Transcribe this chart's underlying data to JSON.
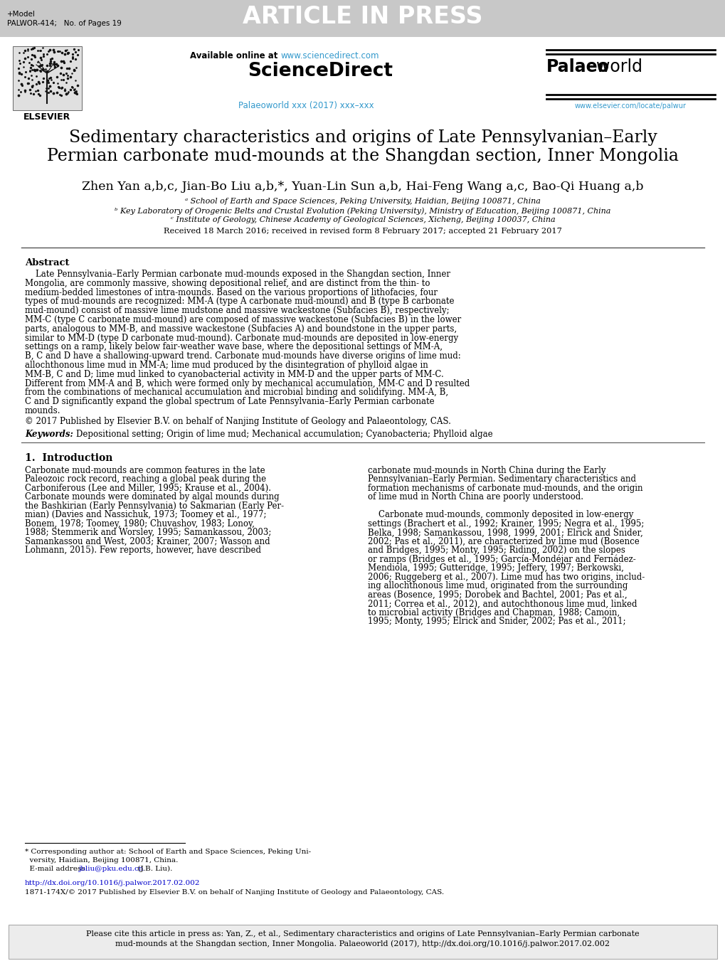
{
  "header_bg": "#c8c8c8",
  "header_text": "ARTICLE IN PRESS",
  "header_left_line1": "+Model",
  "header_left_line2": "PALWOR-414;   No. of Pages 19",
  "url_text": "www.sciencedirect.com",
  "url_color": "#3399cc",
  "journal_issue": "Palaeoworld xxx (2017) xxx–xxx",
  "journal_issue_color": "#3399cc",
  "journal_url": "www.elsevier.com/locate/palwur",
  "journal_url_color": "#3399cc",
  "title_line1": "Sedimentary characteristics and origins of Late Pennsylvanian–Early",
  "title_line2": "Permian carbonate mud-mounds at the Shangdan section, Inner Mongolia",
  "affil_a": "ᵃ School of Earth and Space Sciences, Peking University, Haidian, Beijing 100871, China",
  "affil_b": "ᵇ Key Laboratory of Orogenic Belts and Crustal Evolution (Peking University), Ministry of Education, Beijing 100871, China",
  "affil_c": "ᶜ Institute of Geology, Chinese Academy of Geological Sciences, Xicheng, Beijing 100037, China",
  "received": "Received 18 March 2016; received in revised form 8 February 2017; accepted 21 February 2017",
  "abstract_title": "Abstract",
  "abstract_para": "    Late Pennsylvania–Early Permian carbonate mud-mounds exposed in the Shangdan section, Inner Mongolia, are commonly massive, showing depositional relief, and are distinct from the thin- to medium-bedded limestones of intra-mounds. Based on the various proportions of lithofacies, four types of mud-mounds are recognized: MM-A (type A carbonate mud-mound) and B (type B carbonate mud-mound) consist of massive lime mudstone and massive wackestone (Subfacies B), respectively; MM-C (type C carbonate mud-mound) are composed of massive wackestone (Subfacies B) in the lower parts, analogous to MM-B, and massive wackestone (Subfacies A) and boundstone in the upper parts, similar to MM-D (type D carbonate mud-mound). Carbonate mud-mounds are deposited in low-energy settings on a ramp, likely below fair-weather wave base, where the depositional settings of MM-A, B, C and D have a shallowing-upward trend. Carbonate mud-mounds have diverse origins of lime mud: allochthonous lime mud in MM-A; lime mud produced by the disintegration of phylloid algae in MM-B, C and D; lime mud linked to cyanobacterial activity in MM-D and the upper parts of MM-C. Different from MM-A and B, which were formed only by mechanical accumulation, MM-C and D resulted from the combinations of mechanical accumulation and microbial binding and solidifying. MM-A, B, C and D significantly expand the global spectrum of Late Pennsylvania–Early Permian carbonate mounds.",
  "abstract_copy": "© 2017 Published by Elsevier B.V. on behalf of Nanjing Institute of Geology and Palaeontology, CAS.",
  "keywords_label": "Keywords:  ",
  "keywords_text": "Depositional setting; Origin of lime mud; Mechanical accumulation; Cyanobacteria; Phylloid algae",
  "section1_title": "1.  Introduction",
  "intro_col1_lines": [
    "Carbonate mud-mounds are common features in the late",
    "Paleozoic rock record, reaching a global peak during the",
    "Carboniferous (Lee and Miller, 1995; Krause et al., 2004).",
    "Carbonate mounds were dominated by algal mounds during",
    "the Bashkirian (Early Pennsylvania) to Sakmarian (Early Per-",
    "mian) (Davies and Nassichuk, 1973; Toomey et al., 1977;",
    "Bonem, 1978; Toomey, 1980; Chuvashov, 1983; Lonoy,",
    "1988; Stemmerik and Worsley, 1995; Samankassou, 2003;",
    "Samankassou and West, 2003; Krainer, 2007; Wasson and",
    "Lohmann, 2015). Few reports, however, have described"
  ],
  "intro_col2_lines": [
    "carbonate mud-mounds in North China during the Early",
    "Pennsylvanian–Early Permian. Sedimentary characteristics and",
    "formation mechanisms of carbonate mud-mounds, and the origin",
    "of lime mud in North China are poorly understood.",
    "",
    "    Carbonate mud-mounds, commonly deposited in low-energy",
    "settings (Brachert et al., 1992; Krainer, 1995; Negra et al., 1995;",
    "Belka, 1998; Samankassou, 1998, 1999, 2001; Elrick and Snider,",
    "2002; Pas et al., 2011), are characterized by lime mud (Bosence",
    "and Bridges, 1995; Monty, 1995; Riding, 2002) on the slopes",
    "or ramps (Bridges et al., 1995; García-Mondéjar and Fernádez-",
    "Mendiola, 1995; Gutteridge, 1995; Jeffery, 1997; Berkowski,",
    "2006; Ruggeberg et al., 2007). Lime mud has two origins, includ-",
    "ing allochthonous lime mud, originated from the surrounding",
    "areas (Bosence, 1995; Dorobek and Bachtel, 2001; Pas et al.,",
    "2011; Correa et al., 2012), and autochthonous lime mud, linked",
    "to microbial activity (Bridges and Chapman, 1988; Camoin,",
    "1995; Monty, 1995; Elrick and Snider, 2002; Pas et al., 2011;"
  ],
  "footnote_line1": "* Corresponding author at: School of Earth and Space Sciences, Peking Uni-",
  "footnote_line2": "  versity, Haidian, Beijing 100871, China.",
  "footnote_line3a": "  E-mail address: ",
  "footnote_email": "jbliu@pku.edu.cn",
  "footnote_line3b": " (J.B. Liu).",
  "footnote_doi": "http://dx.doi.org/10.1016/j.palwor.2017.02.002",
  "footnote_issn": "1871-174X/© 2017 Published by Elsevier B.V. on behalf of Nanjing Institute of Geology and Palaeontology, CAS.",
  "cite_line1": "Please cite this article in press as: Yan, Z., et al., Sedimentary characteristics and origins of Late Pennsylvanian–Early Permian carbonate",
  "cite_line2": "mud-mounds at the Shangdan section, Inner Mongolia. Palaeoworld (2017), http://dx.doi.org/10.1016/j.palwor.2017.02.002",
  "cite_box_bg": "#ececec",
  "link_color": "#0000cc",
  "ref_color": "#3399cc",
  "background_color": "#ffffff"
}
